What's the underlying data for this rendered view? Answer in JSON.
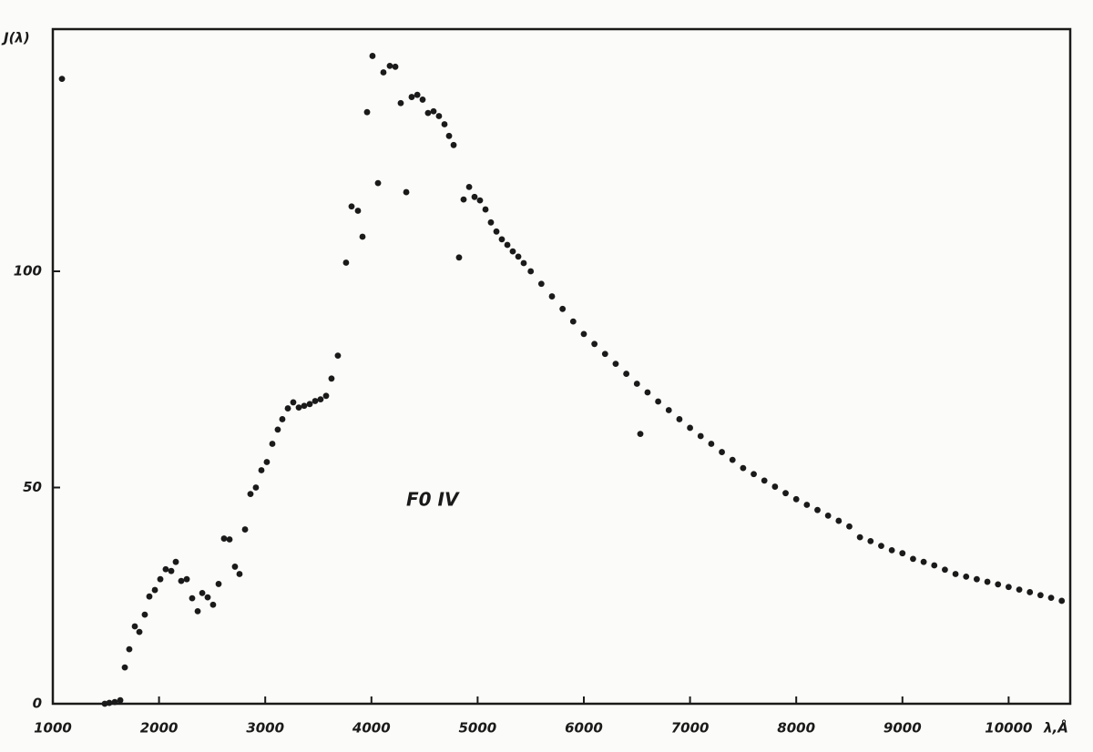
{
  "chart_data": {
    "type": "scatter",
    "y_label": "J(λ)",
    "x_label": "λ,Å",
    "annotation": "F0 IV",
    "color": "#1a1a1a",
    "xlim": [
      1000,
      10580
    ],
    "ylim": [
      0,
      156
    ],
    "xticks": [
      1000,
      2000,
      3000,
      4000,
      5000,
      6000,
      7000,
      8000,
      9000,
      10000
    ],
    "yticks": [
      0,
      50,
      100
    ],
    "x": [
      1086,
      1489,
      1532,
      1583,
      1635,
      1678,
      1720,
      1772,
      1815,
      1866,
      1909,
      1961,
      2012,
      2063,
      2115,
      2158,
      2209,
      2261,
      2312,
      2364,
      2407,
      2458,
      2509,
      2561,
      2612,
      2664,
      2715,
      2758,
      2810,
      2861,
      2912,
      2964,
      3015,
      3067,
      3118,
      3161,
      3213,
      3264,
      3316,
      3367,
      3419,
      3470,
      3521,
      3573,
      3624,
      3684,
      3761,
      3813,
      3873,
      3916,
      3959,
      4010,
      4062,
      4113,
      4173,
      4225,
      4276,
      4328,
      4379,
      4432,
      4482,
      4533,
      4585,
      4636,
      4688,
      4731,
      4774,
      4825,
      4868,
      4920,
      4971,
      5022,
      5074,
      5125,
      5177,
      5228,
      5280,
      5331,
      5383,
      5434,
      5500,
      5600,
      5700,
      5800,
      5900,
      6000,
      6100,
      6200,
      6300,
      6400,
      6500,
      6532,
      6600,
      6700,
      6800,
      6900,
      7000,
      7100,
      7200,
      7300,
      7400,
      7500,
      7600,
      7700,
      7800,
      7900,
      8000,
      8100,
      8200,
      8300,
      8400,
      8500,
      8600,
      8700,
      8800,
      8900,
      9000,
      9100,
      9200,
      9300,
      9400,
      9500,
      9600,
      9700,
      9800,
      9900,
      10000,
      10100,
      10200,
      10300,
      10400,
      10500
    ],
    "values": [
      144.5,
      0,
      0.2,
      0.4,
      0.8,
      8.4,
      12.6,
      17.9,
      16.6,
      20.6,
      24.8,
      26.3,
      28.8,
      31.1,
      30.7,
      32.8,
      28.4,
      28.8,
      24.4,
      21.4,
      25.6,
      24.6,
      22.9,
      27.7,
      38.2,
      38.0,
      31.7,
      30.0,
      40.3,
      48.5,
      50.0,
      54.0,
      55.9,
      60.1,
      63.4,
      65.8,
      68.3,
      69.7,
      68.5,
      68.9,
      69.3,
      70.0,
      70.4,
      71.2,
      75.2,
      80.5,
      102,
      115,
      114,
      108,
      136.8,
      149.8,
      120.4,
      146,
      147.5,
      147.3,
      138.9,
      118.3,
      140.3,
      140.8,
      139.7,
      136.6,
      137.0,
      135.9,
      134,
      131.3,
      129.2,
      103.2,
      116.6,
      119.5,
      117.2,
      116.4,
      114.3,
      111.3,
      109.2,
      107.4,
      106.1,
      104.6,
      103.4,
      101.9,
      100,
      97.1,
      94.2,
      91.3,
      88.4,
      85.5,
      83.2,
      80.9,
      78.6,
      76.3,
      74.0,
      62.4,
      72.0,
      69.9,
      67.9,
      65.8,
      63.8,
      61.9,
      60.1,
      58.2,
      56.4,
      54.5,
      53.1,
      51.6,
      50.2,
      48.7,
      47.3,
      46.0,
      44.8,
      43.5,
      42.3,
      41.0,
      38.5,
      37.6,
      36.5,
      35.5,
      34.8,
      33.5,
      32.8,
      32.0,
      31.0,
      30.0,
      29.4,
      28.8,
      28.2,
      27.6,
      27.0,
      26.4,
      25.8,
      25.1,
      24.5,
      23.8
    ]
  }
}
